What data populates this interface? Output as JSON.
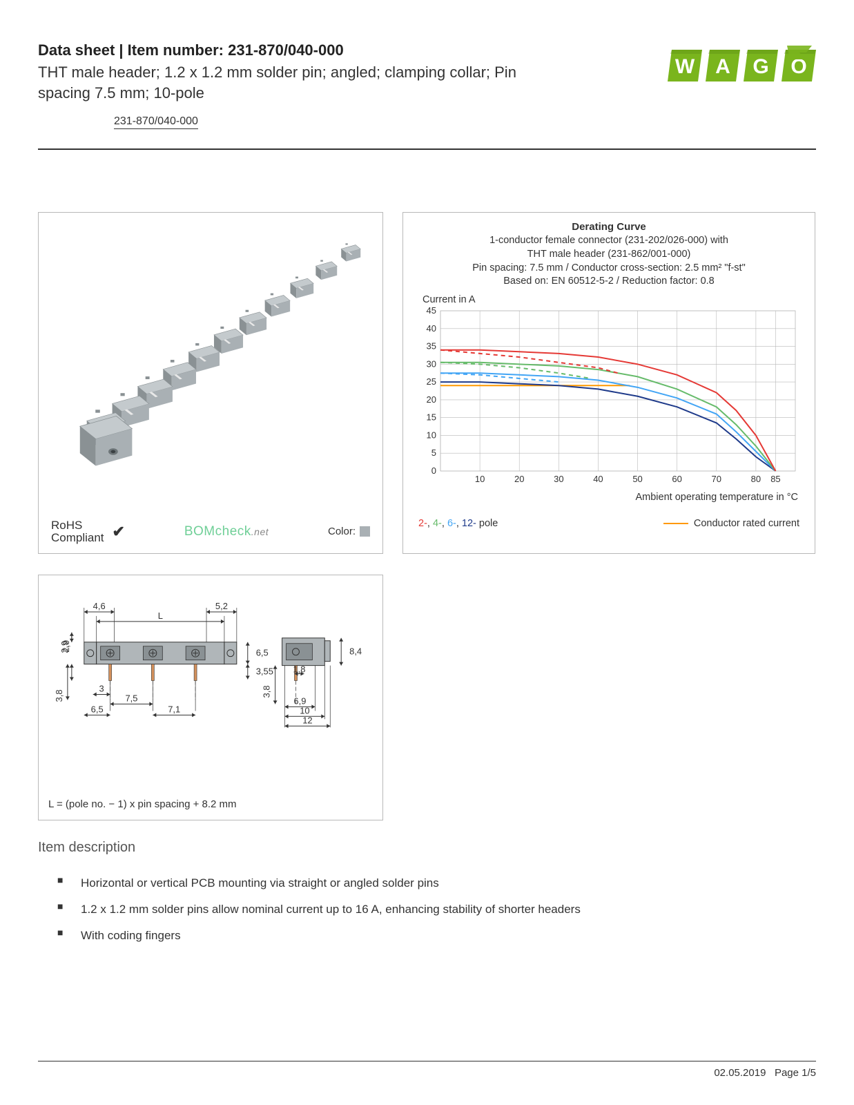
{
  "header": {
    "title_prefix": "Data sheet  |  Item number: ",
    "item_number": "231-870/040-000",
    "description": "THT male header; 1.2 x 1.2 mm solder pin; angled; clamping collar; Pin spacing 7.5 mm; 10-pole",
    "link_text": "231-870/040-000"
  },
  "logo": {
    "text": "WAGO",
    "color": "#7ab51d",
    "shadow": "#5a8a14"
  },
  "product_panel": {
    "connector_color": "#a9b0b4",
    "connector_light": "#c4cacd",
    "connector_dark": "#8a9194",
    "pin_color": "#e8e8e8",
    "rohs_line1": "RoHS",
    "rohs_line2": "Compliant",
    "bomcheck_main": "BOMcheck",
    "bomcheck_suffix": ".net",
    "color_label": "Color:",
    "color_swatch": "#a9b0b4"
  },
  "chart": {
    "title": "Derating Curve",
    "sub1": "1-conductor female connector (231-202/026-000) with",
    "sub2": "THT male header (231-862/001-000)",
    "sub3": "Pin spacing: 7.5 mm / Conductor cross-section: 2.5 mm² \"f-st\"",
    "sub4": "Based on: EN 60512-5-2 / Reduction factor: 0.8",
    "y_label": "Current in A",
    "x_label": "Ambient operating temperature in °C",
    "y_max": 45,
    "y_min": 0,
    "y_step": 5,
    "x_min": 0,
    "x_max": 90,
    "x_ticks": [
      10,
      20,
      30,
      40,
      50,
      60,
      70,
      80,
      85
    ],
    "grid_color": "#b8b8b8",
    "bg_color": "#ffffff",
    "series": {
      "pole2_solid": {
        "color": "#e53935",
        "points": [
          [
            0,
            34
          ],
          [
            10,
            34
          ],
          [
            20,
            33.5
          ],
          [
            30,
            33
          ],
          [
            40,
            32
          ],
          [
            50,
            30
          ],
          [
            60,
            27
          ],
          [
            70,
            22
          ],
          [
            75,
            17
          ],
          [
            80,
            10
          ],
          [
            85,
            0
          ]
        ]
      },
      "pole2_dash": {
        "color": "#e53935",
        "points": [
          [
            0,
            34
          ],
          [
            10,
            33
          ],
          [
            20,
            32
          ],
          [
            30,
            30.5
          ],
          [
            40,
            29
          ],
          [
            45,
            27.5
          ]
        ]
      },
      "pole4_solid": {
        "color": "#66bb6a",
        "points": [
          [
            0,
            30.5
          ],
          [
            10,
            30.5
          ],
          [
            20,
            30
          ],
          [
            30,
            29.5
          ],
          [
            40,
            28.5
          ],
          [
            50,
            26.5
          ],
          [
            60,
            23
          ],
          [
            70,
            18
          ],
          [
            75,
            13
          ],
          [
            80,
            7
          ],
          [
            85,
            0
          ]
        ]
      },
      "pole4_dash": {
        "color": "#66bb6a",
        "points": [
          [
            0,
            30.5
          ],
          [
            10,
            30
          ],
          [
            20,
            29
          ],
          [
            30,
            27.5
          ],
          [
            38,
            26
          ]
        ]
      },
      "pole6_solid": {
        "color": "#42a5f5",
        "points": [
          [
            0,
            27.5
          ],
          [
            10,
            27.5
          ],
          [
            20,
            27
          ],
          [
            30,
            26.5
          ],
          [
            40,
            25.5
          ],
          [
            50,
            23.5
          ],
          [
            60,
            20.5
          ],
          [
            70,
            16
          ],
          [
            75,
            11
          ],
          [
            80,
            5.5
          ],
          [
            85,
            0
          ]
        ]
      },
      "pole6_dash": {
        "color": "#42a5f5",
        "points": [
          [
            0,
            27.5
          ],
          [
            10,
            27
          ],
          [
            20,
            26
          ],
          [
            30,
            25
          ]
        ]
      },
      "pole12_solid": {
        "color": "#1e3a8a",
        "points": [
          [
            0,
            25
          ],
          [
            10,
            25
          ],
          [
            20,
            24.5
          ],
          [
            30,
            24
          ],
          [
            40,
            23
          ],
          [
            50,
            21
          ],
          [
            60,
            18
          ],
          [
            70,
            13.5
          ],
          [
            75,
            9
          ],
          [
            80,
            4
          ],
          [
            85,
            0
          ]
        ]
      },
      "conductor": {
        "color": "#ff9800",
        "points": [
          [
            0,
            24
          ],
          [
            48,
            24
          ]
        ]
      }
    },
    "legend": {
      "pole2": {
        "label": "2-",
        "color": "#e53935"
      },
      "pole4": {
        "label": "4-",
        "color": "#66bb6a"
      },
      "pole6": {
        "label": "6-",
        "color": "#42a5f5"
      },
      "pole12": {
        "label": "12-",
        "color": "#1e3a8a"
      },
      "suffix": "pole",
      "conductor_label": "Conductor rated current",
      "conductor_color": "#ff9800"
    }
  },
  "diagram": {
    "caption": "L = (pole no. − 1) x pin spacing + 8.2 mm",
    "body_color": "#b0b6b9",
    "body_dark": "#8a9194",
    "pin_color": "#d4915c",
    "line_color": "#333333",
    "dims": {
      "d46": "4,6",
      "d52": "5,2",
      "dL": "L",
      "d29": "2,9",
      "d65": "6,5",
      "d38": "3,8",
      "d3": "3",
      "d75": "7,5",
      "d65b": "6,5",
      "d71": "7,1",
      "d355": "3,55",
      "d18": "1,8",
      "d84": "8,4",
      "d69": "6,9",
      "d10": "10",
      "d12": "12",
      "d38b": "3,8"
    }
  },
  "section_title": "Item description",
  "bullets": [
    "Horizontal or vertical PCB mounting via straight or angled solder pins",
    "1.2 x 1.2 mm solder pins allow nominal current up to 16 A, enhancing stability of shorter headers",
    "With coding fingers"
  ],
  "footer": {
    "date": "02.05.2019",
    "page": "Page 1/5"
  },
  "colors": {
    "text": "#333333",
    "border": "#b8b8b8",
    "rule": "#333333"
  }
}
